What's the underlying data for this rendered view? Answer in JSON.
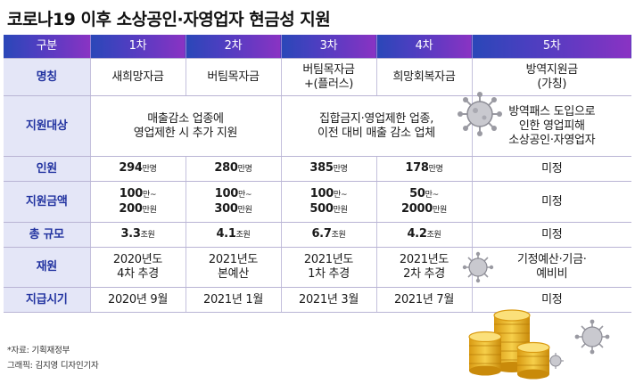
{
  "title": "코로나19 이후 소상공인·자영업자 현금성 지원",
  "header": [
    "구분",
    "1차",
    "2차",
    "3차",
    "4차",
    "5차"
  ],
  "rows": {
    "name": {
      "label": "명칭",
      "c1": "새희망자금",
      "c2": "버팀목자금",
      "c3": [
        "버팀목자금",
        "+(플러스)"
      ],
      "c4": "희망회복자금",
      "c5": [
        "방역지원금",
        "(가칭)"
      ]
    },
    "target": {
      "label": "지원대상",
      "c12": [
        "매출감소 업종에",
        "영업제한 시 추가 지원"
      ],
      "c34": [
        "집합금지·영업제한 업종,",
        "이전 대비 매출 감소 업체"
      ],
      "c5": [
        "방역패스 도입으로",
        "인한 영업피해",
        "소상공인·자영업자"
      ]
    },
    "people": {
      "label": "인원",
      "c1": {
        "num": "294",
        "unit": "만명"
      },
      "c2": {
        "num": "280",
        "unit": "만명"
      },
      "c3": {
        "num": "385",
        "unit": "만명"
      },
      "c4": {
        "num": "178",
        "unit": "만명"
      },
      "c5": "미정"
    },
    "amount": {
      "label": "지원금액",
      "c1": {
        "a": "100",
        "au": "만~",
        "b": "200",
        "bu": "만원"
      },
      "c2": {
        "a": "100",
        "au": "만~",
        "b": "300",
        "bu": "만원"
      },
      "c3": {
        "a": "100",
        "au": "만~",
        "b": "500",
        "bu": "만원"
      },
      "c4": {
        "a": "50",
        "au": "만~",
        "b": "2000",
        "bu": "만원"
      },
      "c5": "미정"
    },
    "scale": {
      "label": "총 규모",
      "c1": {
        "num": "3.3",
        "unit": "조원"
      },
      "c2": {
        "num": "4.1",
        "unit": "조원"
      },
      "c3": {
        "num": "6.7",
        "unit": "조원"
      },
      "c4": {
        "num": "4.2",
        "unit": "조원"
      },
      "c5": "미정"
    },
    "source": {
      "label": "재원",
      "c1": [
        "2020년도",
        "4차 추경"
      ],
      "c2": [
        "2021년도",
        "본예산"
      ],
      "c3": [
        "2021년도",
        "1차 추경"
      ],
      "c4": [
        "2021년도",
        "2차 추경"
      ],
      "c5": [
        "기정예산·기금·",
        "예비비"
      ]
    },
    "timing": {
      "label": "지급시기",
      "c1": "2020년 9월",
      "c2": "2021년 1월",
      "c3": "2021년 3월",
      "c4": "2021년 7월",
      "c5": "미정"
    }
  },
  "footer": {
    "source": "*자료: 기획재정부",
    "credit": "그래픽: 김지영 디자인기자"
  },
  "colors": {
    "header_gradient_start": "#2a47b8",
    "header_gradient_end": "#8a33c3",
    "rowhead_bg": "#e4e6f7",
    "rowhead_text": "#2233a0",
    "coin": "#f2c230"
  },
  "decorations": [
    "virus-icon",
    "coin-stack-icon"
  ]
}
